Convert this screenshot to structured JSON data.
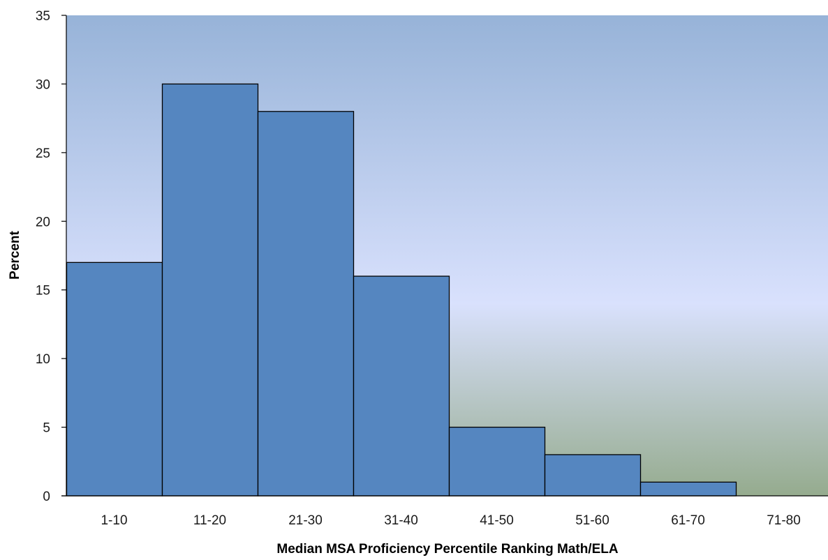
{
  "chart_data": {
    "type": "bar",
    "title": "",
    "xlabel": "Median MSA Proficiency Percentile Ranking Math/ELA",
    "ylabel": "Percent",
    "categories": [
      "1-10",
      "11-20",
      "21-30",
      "31-40",
      "41-50",
      "51-60",
      "61-70",
      "71-80"
    ],
    "values": [
      17,
      30,
      28,
      16,
      5,
      3,
      1,
      0
    ],
    "ylim": [
      0,
      35
    ],
    "yticks": [
      0,
      5,
      10,
      15,
      20,
      25,
      30,
      35
    ],
    "grid": false,
    "legend": "none",
    "colors": {
      "bar_fill": "#5586c0",
      "bar_stroke": "#000000",
      "plot_bg_top": "#97b3d8",
      "plot_bg_mid": "#d9e1fd",
      "plot_bg_bottom": "#95ab8e"
    }
  }
}
